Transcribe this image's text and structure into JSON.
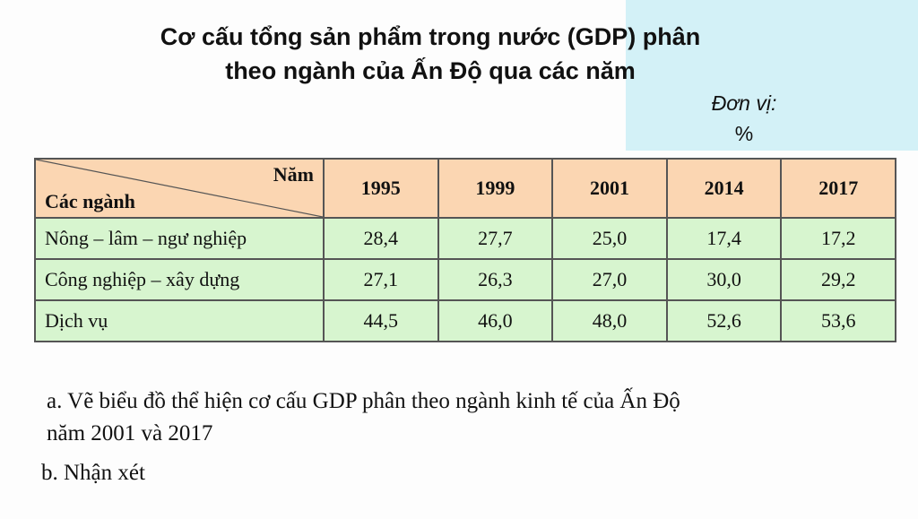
{
  "title": {
    "line1": "Cơ cấu tổng sản phẩm trong nước (GDP) phân",
    "line2": "theo ngành của Ấn Độ qua các năm"
  },
  "unit": {
    "label": "Đơn vị:",
    "value": "%"
  },
  "table": {
    "corner_top": "Năm",
    "corner_bottom": "Các ngành",
    "years": [
      "1995",
      "1999",
      "2001",
      "2014",
      "2017"
    ],
    "rows": [
      {
        "label": "Nông – lâm – ngư nghiệp",
        "values": [
          "28,4",
          "27,7",
          "25,0",
          "17,4",
          "17,2"
        ]
      },
      {
        "label": "Công nghiệp – xây dựng",
        "values": [
          "27,1",
          "26,3",
          "27,0",
          "30,0",
          "29,2"
        ]
      },
      {
        "label": "Dịch vụ",
        "values": [
          "44,5",
          "46,0",
          "48,0",
          "52,6",
          "53,6"
        ]
      }
    ]
  },
  "questions": {
    "a_line1": "a. Vẽ biểu đồ thể hiện cơ cấu GDP phân theo ngành kinh tế của Ấn Độ",
    "a_line2": "năm 2001 và 2017",
    "b": "b. Nhận xét"
  }
}
